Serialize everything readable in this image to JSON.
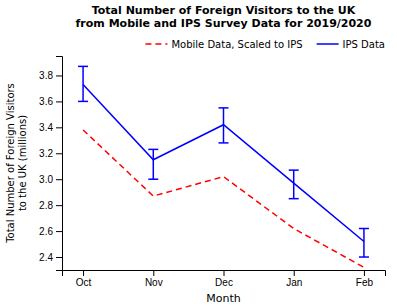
{
  "chart_data": {
    "type": "line",
    "title": "Total Number of Foreign Visitors to the UK\nfrom Mobile and IPS Survey Data for 2019/2020",
    "xlabel": "Month",
    "ylabel": "Total Number of Foreign Visitors\nto the UK (millions)",
    "categories": [
      "Oct",
      "Nov",
      "Dec",
      "Jan",
      "Feb"
    ],
    "series": [
      {
        "name": "Mobile Data, Scaled to IPS",
        "color": "red",
        "line_style": "dashed",
        "values": [
          3.38,
          2.87,
          3.02,
          2.62,
          2.32
        ]
      },
      {
        "name": "IPS Data",
        "color": "blue",
        "line_style": "solid",
        "values": [
          3.73,
          3.15,
          3.42,
          2.97,
          2.52
        ],
        "yerr_lower": [
          0.13,
          0.15,
          0.14,
          0.12,
          0.12
        ],
        "yerr_upper": [
          0.14,
          0.08,
          0.13,
          0.1,
          0.1
        ]
      }
    ],
    "ylim": [
      2.3,
      3.95
    ],
    "yticks": [
      2.4,
      2.6,
      2.8,
      {
        "value": 3.0,
        "label": "3.0"
      },
      3.2,
      3.4,
      3.6,
      3.8
    ],
    "grid": false,
    "legend": "upper right"
  }
}
